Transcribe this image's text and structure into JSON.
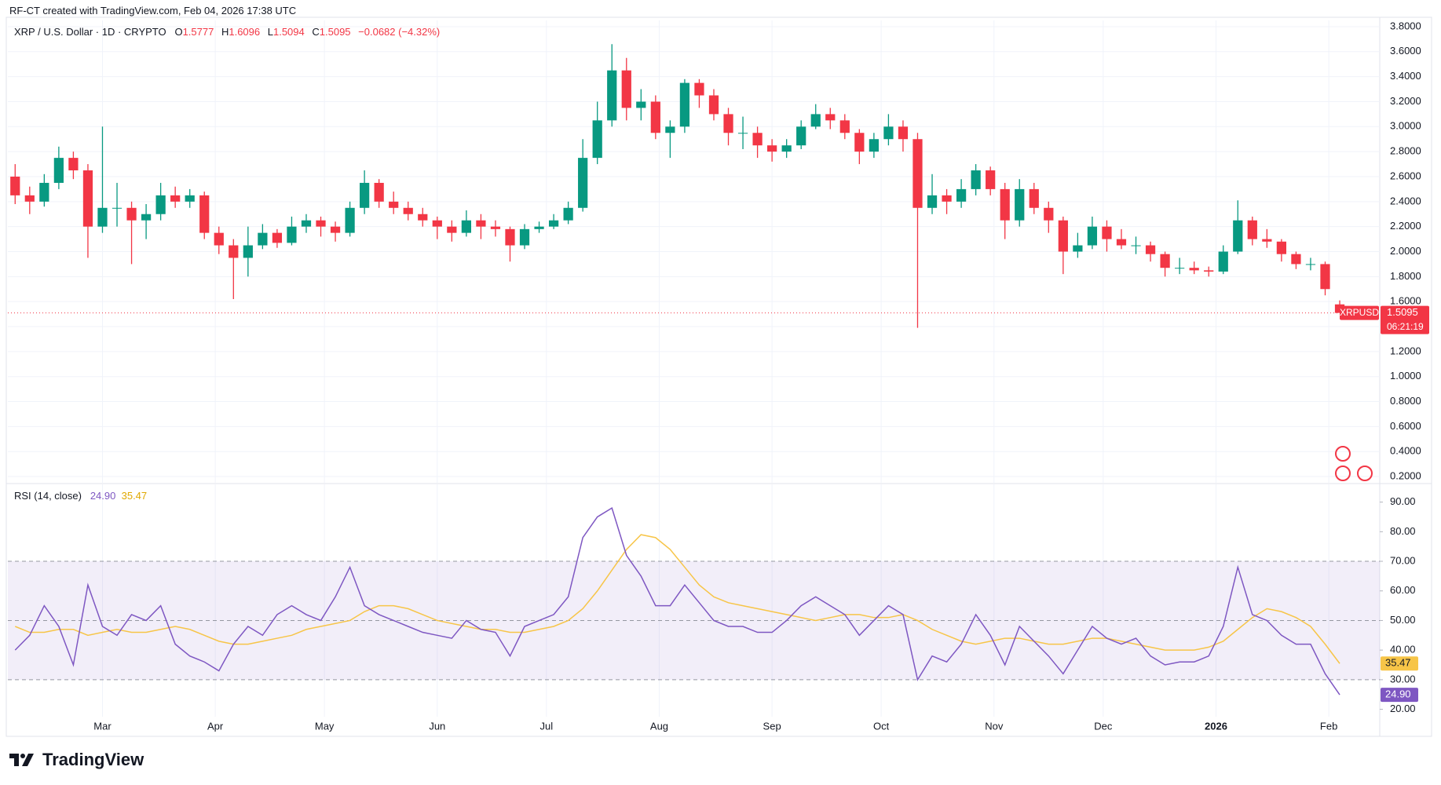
{
  "header": {
    "text": "RF-CT created with TradingView.com, Feb 04, 2026 17:38 UTC"
  },
  "footer": {
    "logo": "TradingView"
  },
  "chart_data": [
    {
      "type": "candlestick",
      "title": "XRP / U.S. Dollar · 1D · CRYPTO",
      "ohlc_labels": [
        "O",
        "H",
        "L",
        "C"
      ],
      "change_label": "−0.0682 (−4.32%)",
      "countdown": "06:21:19",
      "up_color": "#089981",
      "down_color": "#f23645",
      "grid": true,
      "xlim": [
        -1,
        376
      ],
      "xticks": [
        {
          "value": 25,
          "label": "Mar"
        },
        {
          "value": 56,
          "label": "Apr"
        },
        {
          "value": 86,
          "label": "May"
        },
        {
          "value": 117,
          "label": "Jun"
        },
        {
          "value": 147,
          "label": "Jul"
        },
        {
          "value": 178,
          "label": "Aug"
        },
        {
          "value": 209,
          "label": "Sep"
        },
        {
          "value": 239,
          "label": "Oct"
        },
        {
          "value": 270,
          "label": "Nov"
        },
        {
          "value": 300,
          "label": "Dec"
        },
        {
          "value": 331,
          "label": "2026"
        },
        {
          "value": 362,
          "label": "Feb"
        }
      ],
      "ylim": [
        0.15,
        3.85
      ],
      "yticks": [
        {
          "value": 0.2,
          "label": "0.2000"
        },
        {
          "value": 0.4,
          "label": "0.4000"
        },
        {
          "value": 0.6,
          "label": "0.6000"
        },
        {
          "value": 0.8,
          "label": "0.8000"
        },
        {
          "value": 1.0,
          "label": "1.0000"
        },
        {
          "value": 1.2,
          "label": "1.2000"
        },
        {
          "value": 1.4,
          "label": "1.4000"
        },
        {
          "value": 1.6,
          "label": "1.6000"
        },
        {
          "value": 1.8,
          "label": "1.8000"
        },
        {
          "value": 2.0,
          "label": "2.0000"
        },
        {
          "value": 2.2,
          "label": "2.2000"
        },
        {
          "value": 2.4,
          "label": "2.4000"
        },
        {
          "value": 2.6,
          "label": "2.6000"
        },
        {
          "value": 2.8,
          "label": "2.8000"
        },
        {
          "value": 3.0,
          "label": "3.0000"
        },
        {
          "value": 3.2,
          "label": "3.2000"
        },
        {
          "value": 3.4,
          "label": "3.4000"
        },
        {
          "value": 3.6,
          "label": "3.6000"
        },
        {
          "value": 3.8,
          "label": "3.8000"
        }
      ],
      "x": [
        1,
        5,
        9,
        13,
        17,
        21,
        25,
        29,
        33,
        37,
        41,
        45,
        49,
        53,
        57,
        61,
        65,
        69,
        73,
        77,
        81,
        85,
        89,
        93,
        97,
        101,
        105,
        109,
        113,
        117,
        121,
        125,
        129,
        133,
        137,
        141,
        145,
        149,
        153,
        157,
        161,
        165,
        169,
        173,
        177,
        181,
        185,
        189,
        193,
        197,
        201,
        205,
        209,
        213,
        217,
        221,
        225,
        229,
        233,
        237,
        241,
        245,
        249,
        253,
        257,
        261,
        265,
        269,
        273,
        277,
        281,
        285,
        289,
        293,
        297,
        301,
        305,
        309,
        313,
        317,
        321,
        325,
        329,
        333,
        337,
        341,
        345,
        349,
        353,
        357,
        361,
        365
      ],
      "series": [
        {
          "name": "XRPUSD",
          "open": [
            2.6,
            2.45,
            2.4,
            2.55,
            2.75,
            2.65,
            2.2,
            2.35,
            2.35,
            2.25,
            2.3,
            2.45,
            2.4,
            2.45,
            2.15,
            2.05,
            1.95,
            2.05,
            2.15,
            2.07,
            2.2,
            2.25,
            2.2,
            2.15,
            2.35,
            2.55,
            2.4,
            2.35,
            2.3,
            2.25,
            2.2,
            2.15,
            2.25,
            2.2,
            2.18,
            2.05,
            2.18,
            2.2,
            2.25,
            2.35,
            2.75,
            3.05,
            3.45,
            3.15,
            3.2,
            2.95,
            3.0,
            3.35,
            3.25,
            3.1,
            2.95,
            2.95,
            2.85,
            2.8,
            2.85,
            3.0,
            3.1,
            3.05,
            2.95,
            2.8,
            2.9,
            3.0,
            2.9,
            2.35,
            2.45,
            2.4,
            2.5,
            2.65,
            2.5,
            2.25,
            2.5,
            2.35,
            2.25,
            2.0,
            2.05,
            2.2,
            2.1,
            2.05,
            2.05,
            1.98,
            1.87,
            1.87,
            1.85,
            1.84,
            2.0,
            2.25,
            2.1,
            2.08,
            1.98,
            1.9,
            1.9,
            1.5777
          ],
          "high": [
            2.7,
            2.52,
            2.62,
            2.84,
            2.8,
            2.7,
            3.0,
            2.55,
            2.4,
            2.38,
            2.55,
            2.52,
            2.5,
            2.48,
            2.2,
            2.1,
            2.2,
            2.22,
            2.18,
            2.28,
            2.3,
            2.28,
            2.24,
            2.4,
            2.65,
            2.58,
            2.48,
            2.4,
            2.35,
            2.28,
            2.25,
            2.33,
            2.3,
            2.25,
            2.2,
            2.22,
            2.24,
            2.3,
            2.4,
            2.9,
            3.2,
            3.66,
            3.55,
            3.3,
            3.25,
            3.05,
            3.38,
            3.38,
            3.3,
            3.15,
            3.08,
            3.0,
            2.9,
            2.9,
            3.05,
            3.18,
            3.15,
            3.1,
            2.98,
            2.95,
            3.1,
            3.05,
            2.95,
            2.62,
            2.5,
            2.58,
            2.7,
            2.68,
            2.55,
            2.58,
            2.55,
            2.4,
            2.28,
            2.15,
            2.28,
            2.25,
            2.18,
            2.12,
            2.08,
            2.0,
            1.95,
            1.92,
            1.88,
            2.05,
            2.41,
            2.28,
            2.18,
            2.1,
            2.0,
            1.95,
            1.92,
            1.6096
          ],
          "low": [
            2.38,
            2.3,
            2.36,
            2.5,
            2.58,
            1.95,
            2.15,
            2.2,
            1.9,
            2.1,
            2.25,
            2.35,
            2.35,
            2.1,
            1.98,
            1.62,
            1.8,
            2.02,
            2.03,
            2.05,
            2.15,
            2.12,
            2.08,
            2.12,
            2.3,
            2.35,
            2.3,
            2.25,
            2.2,
            2.1,
            2.08,
            2.12,
            2.1,
            2.12,
            1.92,
            2.02,
            2.15,
            2.18,
            2.22,
            2.32,
            2.7,
            3.0,
            3.05,
            3.05,
            2.9,
            2.75,
            2.95,
            3.15,
            3.05,
            2.85,
            2.82,
            2.75,
            2.72,
            2.75,
            2.82,
            2.98,
            2.98,
            2.9,
            2.7,
            2.75,
            2.85,
            2.8,
            1.39,
            2.3,
            2.3,
            2.35,
            2.45,
            2.45,
            2.1,
            2.2,
            2.3,
            2.15,
            1.82,
            1.95,
            2.02,
            2.0,
            2.02,
            1.98,
            1.92,
            1.8,
            1.82,
            1.82,
            1.8,
            1.82,
            1.98,
            2.05,
            2.03,
            1.92,
            1.86,
            1.85,
            1.65,
            1.5094
          ],
          "close": [
            2.45,
            2.4,
            2.55,
            2.75,
            2.65,
            2.2,
            2.35,
            2.35,
            2.25,
            2.3,
            2.45,
            2.4,
            2.45,
            2.15,
            2.05,
            1.95,
            2.05,
            2.15,
            2.07,
            2.2,
            2.25,
            2.2,
            2.15,
            2.35,
            2.55,
            2.4,
            2.35,
            2.3,
            2.25,
            2.2,
            2.15,
            2.25,
            2.2,
            2.18,
            2.05,
            2.18,
            2.2,
            2.25,
            2.35,
            2.75,
            3.05,
            3.45,
            3.15,
            3.2,
            2.95,
            3.0,
            3.35,
            3.25,
            3.1,
            2.95,
            2.95,
            2.85,
            2.8,
            2.85,
            3.0,
            3.1,
            3.05,
            2.95,
            2.8,
            2.9,
            3.0,
            2.9,
            2.35,
            2.45,
            2.4,
            2.5,
            2.65,
            2.5,
            2.25,
            2.5,
            2.35,
            2.25,
            2.0,
            2.05,
            2.2,
            2.1,
            2.05,
            2.05,
            1.98,
            1.87,
            1.87,
            1.85,
            1.84,
            2.0,
            2.25,
            2.1,
            2.08,
            1.98,
            1.9,
            1.9,
            1.7,
            1.5095
          ]
        }
      ]
    },
    {
      "type": "line",
      "title": "RSI (14, close)",
      "ylim": [
        17.5,
        96
      ],
      "yticks": [
        {
          "value": 20,
          "label": "20.00"
        },
        {
          "value": 30,
          "label": "30.00"
        },
        {
          "value": 40,
          "label": "40.00"
        },
        {
          "value": 50,
          "label": "50.00"
        },
        {
          "value": 60,
          "label": "60.00"
        },
        {
          "value": 70,
          "label": "70.00"
        },
        {
          "value": 80,
          "label": "80.00"
        },
        {
          "value": 90,
          "label": "90.00"
        }
      ],
      "levels": [
        30,
        50,
        70
      ],
      "band_color": "rgba(126,87,194,0.10)",
      "series": [
        {
          "color": "#7e57c2",
          "values": [
            40,
            45,
            55,
            48,
            35,
            62,
            48,
            45,
            52,
            50,
            55,
            42,
            38,
            36,
            33,
            42,
            48,
            45,
            52,
            55,
            52,
            50,
            58,
            68,
            55,
            52,
            50,
            48,
            46,
            45,
            44,
            50,
            47,
            46,
            38,
            48,
            50,
            52,
            58,
            78,
            85,
            88,
            72,
            65,
            55,
            55,
            62,
            56,
            50,
            48,
            48,
            46,
            46,
            50,
            55,
            58,
            55,
            52,
            45,
            50,
            55,
            52,
            30,
            38,
            36,
            42,
            52,
            45,
            35,
            48,
            43,
            38,
            32,
            40,
            48,
            44,
            42,
            44,
            38,
            35,
            36,
            36,
            38,
            48,
            68,
            52,
            50,
            45,
            42,
            42,
            32,
            24.9
          ],
          "value_labels": {
            "91": "24.90"
          }
        },
        {
          "color": "#f7c548",
          "values": [
            48,
            46,
            46,
            47,
            47,
            45,
            46,
            47,
            46,
            46,
            47,
            48,
            47,
            45,
            43,
            42,
            42,
            43,
            44,
            45,
            47,
            48,
            49,
            50,
            53,
            55,
            55,
            54,
            52,
            50,
            49,
            48,
            47,
            47,
            46,
            46,
            47,
            48,
            50,
            54,
            60,
            67,
            74,
            79,
            78,
            74,
            68,
            62,
            58,
            56,
            55,
            54,
            53,
            52,
            51,
            50,
            51,
            52,
            52,
            51,
            51,
            52,
            50,
            47,
            45,
            43,
            42,
            43,
            44,
            44,
            43,
            42,
            42,
            43,
            44,
            44,
            43,
            42,
            41,
            40,
            40,
            40,
            41,
            43,
            47,
            51,
            54,
            53,
            51,
            48,
            42,
            35.47
          ]
        }
      ]
    }
  ]
}
